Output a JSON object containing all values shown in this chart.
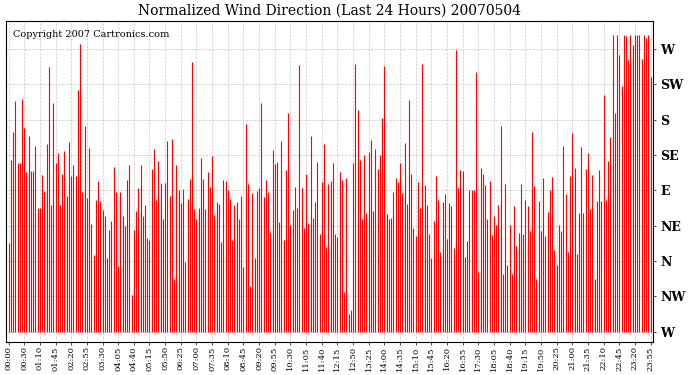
{
  "title": "Normalized Wind Direction (Last 24 Hours) 20070504",
  "copyright_text": "Copyright 2007 Cartronics.com",
  "line_color": "#FF0000",
  "background_color": "#FFFFFF",
  "plot_bg_color": "#FFFFFF",
  "grid_color": "#AAAAAA",
  "ytick_labels": [
    "W",
    "SW",
    "S",
    "SE",
    "E",
    "NE",
    "N",
    "NW",
    "W"
  ],
  "ytick_values": [
    8,
    7,
    6,
    5,
    4,
    3,
    2,
    1,
    0
  ],
  "ylim": [
    -0.3,
    8.8
  ],
  "xtick_labels": [
    "00:00",
    "00:30",
    "01:10",
    "01:45",
    "02:20",
    "02:55",
    "03:30",
    "04:05",
    "04:40",
    "05:15",
    "05:50",
    "06:25",
    "07:00",
    "07:35",
    "08:10",
    "08:45",
    "09:20",
    "09:55",
    "10:30",
    "11:05",
    "11:40",
    "12:15",
    "12:50",
    "13:25",
    "14:00",
    "14:35",
    "15:10",
    "15:45",
    "16:20",
    "16:55",
    "17:30",
    "18:05",
    "18:40",
    "19:15",
    "19:50",
    "20:25",
    "21:00",
    "21:35",
    "22:10",
    "22:45",
    "23:20",
    "23:55"
  ],
  "seed": 42
}
